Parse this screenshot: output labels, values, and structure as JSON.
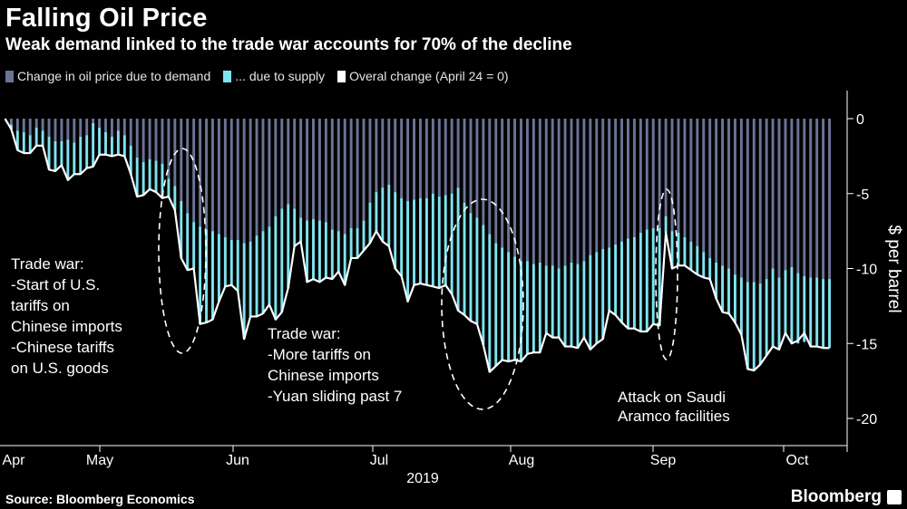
{
  "header": {
    "title": "Falling Oil Price",
    "subtitle": "Weak demand linked to the trade war accounts for 70% of the decline"
  },
  "footer": {
    "source": "Source: Bloomberg Economics",
    "brand": "Bloomberg"
  },
  "colors": {
    "background": "#000000",
    "demand": "#6b7496",
    "supply": "#7fe3ef",
    "overall": "#ffffff",
    "axis": "#ffffff"
  },
  "chart_data": {
    "type": "bar",
    "title": "Falling Oil Price",
    "subtitle": "Weak demand linked to the trade war accounts for 70% of the decline",
    "ylabel": "$ per barrel",
    "xlabel": "2019",
    "ylim": [
      -20,
      0
    ],
    "yticks": [
      0,
      -5,
      -10,
      -15,
      -20
    ],
    "ytick_labels": [
      "0",
      "-5",
      "-10",
      "-15",
      "-20"
    ],
    "x_month_labels": [
      "Apr",
      "May",
      "Jun",
      "Jul",
      "Aug",
      "Sep",
      "Oct"
    ],
    "legend": {
      "position": "top-left",
      "items": [
        {
          "label": "Change in oil price due to demand",
          "color": "#6b7496"
        },
        {
          "label": "... due to supply",
          "color": "#7fe3ef"
        },
        {
          "label": "Overal change (April 24 = 0)",
          "color": "#ffffff"
        }
      ]
    },
    "series": [
      {
        "name": "Change in oil price due to demand",
        "values": [
          0,
          -0.4,
          -0.8,
          -0.9,
          -1.1,
          -0.6,
          -0.8,
          -1.2,
          -1.5,
          -1.5,
          -1.4,
          -1.6,
          -1.2,
          -1.1,
          -0.3,
          -0.6,
          -0.9,
          -1.2,
          -0.8,
          -1.1,
          -1.8,
          -2.6,
          -2.9,
          -2.7,
          -2.8,
          -3.0,
          -4.0,
          -4.5,
          -5.5,
          -6.3,
          -6.9,
          -7.2,
          -7.4,
          -7.5,
          -7.7,
          -7.9,
          -8.1,
          -8.1,
          -8.3,
          -8.2,
          -7.8,
          -7.5,
          -7.2,
          -6.5,
          -6.0,
          -5.7,
          -6.0,
          -6.6,
          -6.8,
          -6.7,
          -6.8,
          -6.9,
          -7.4,
          -7.5,
          -7.7,
          -7.3,
          -7.3,
          -6.8,
          -5.6,
          -4.9,
          -4.6,
          -4.4,
          -4.9,
          -5.3,
          -5.5,
          -5.4,
          -5.3,
          -5.3,
          -5.0,
          -5.2,
          -5.1,
          -5.0,
          -4.6,
          -5.6,
          -6.3,
          -6.6,
          -7.1,
          -7.7,
          -8.3,
          -8.6,
          -8.9,
          -9.2,
          -9.5,
          -9.5,
          -9.7,
          -9.6,
          -9.8,
          -9.8,
          -10.0,
          -9.8,
          -9.6,
          -9.7,
          -9.5,
          -9.1,
          -8.9,
          -8.7,
          -8.6,
          -8.4,
          -8.2,
          -8.0,
          -7.9,
          -7.6,
          -7.4,
          -7.3,
          -7.3,
          -6.5,
          -7.5,
          -7.6,
          -7.9,
          -8.2,
          -8.5,
          -8.9,
          -9.3,
          -9.6,
          -9.8,
          -10.0,
          -10.4,
          -10.6,
          -10.9,
          -10.9,
          -11.0,
          -10.7,
          -10.0,
          -10.6,
          -10.1,
          -9.9,
          -10.3,
          -10.5,
          -10.6,
          -10.6,
          -10.7,
          -10.7
        ],
        "data_points": "trading days from Apr 24 to Oct 10, 2019 (estimated)"
      },
      {
        "name": "... due to supply",
        "values": [
          0,
          -0.3,
          -1.3,
          -1.4,
          -1.2,
          -1.2,
          -1.0,
          -2.2,
          -2.0,
          -1.6,
          -2.7,
          -2.1,
          -2.5,
          -2.2,
          -2.9,
          -1.8,
          -1.5,
          -1.3,
          -1.6,
          -1.4,
          -1.9,
          -2.6,
          -2.2,
          -2.0,
          -2.1,
          -2.3,
          -1.2,
          -1.6,
          -3.8,
          -3.8,
          -3.1,
          -6.5,
          -6.2,
          -5.9,
          -4.5,
          -3.3,
          -3.0,
          -3.4,
          -6.4,
          -5.0,
          -5.4,
          -5.5,
          -5.2,
          -6.9,
          -6.9,
          -5.6,
          -2.5,
          -1.6,
          -4.1,
          -4.0,
          -4.1,
          -3.7,
          -3.3,
          -2.7,
          -3.4,
          -2.0,
          -2.0,
          -2.0,
          -2.7,
          -2.6,
          -3.6,
          -4.1,
          -5.1,
          -5.2,
          -6.7,
          -5.7,
          -5.7,
          -5.8,
          -6.2,
          -6.1,
          -6.0,
          -6.7,
          -8.2,
          -7.5,
          -7.2,
          -7.1,
          -8.0,
          -9.2,
          -8.2,
          -7.5,
          -7.3,
          -6.9,
          -6.7,
          -6.2,
          -5.9,
          -6.0,
          -4.5,
          -4.8,
          -4.6,
          -5.4,
          -5.6,
          -5.6,
          -5.1,
          -6.3,
          -6.1,
          -6.0,
          -4.2,
          -4.7,
          -5.4,
          -6.0,
          -6.1,
          -6.6,
          -6.8,
          -6.4,
          -6.5,
          -1.1,
          -2.5,
          -2.2,
          -1.9,
          -1.9,
          -1.9,
          -1.7,
          -1.4,
          -2.4,
          -3.1,
          -3.0,
          -3.2,
          -3.8,
          -5.8,
          -5.9,
          -5.4,
          -5.1,
          -5.2,
          -4.8,
          -4.3,
          -5.1,
          -4.7,
          -4.4,
          -4.6,
          -4.6,
          -4.6,
          -4.6
        ]
      },
      {
        "name": "Overal change (April 24 = 0)",
        "values": [
          0,
          -0.7,
          -2.1,
          -2.3,
          -2.3,
          -1.8,
          -1.8,
          -3.4,
          -3.5,
          -3.1,
          -4.1,
          -3.7,
          -3.7,
          -3.3,
          -3.2,
          -2.4,
          -2.4,
          -2.5,
          -2.4,
          -2.5,
          -3.7,
          -5.2,
          -5.1,
          -4.7,
          -4.9,
          -5.3,
          -5.2,
          -6.1,
          -9.3,
          -10.1,
          -10.0,
          -13.7,
          -13.6,
          -13.4,
          -12.2,
          -11.2,
          -11.1,
          -11.5,
          -14.7,
          -13.2,
          -13.2,
          -13.0,
          -12.4,
          -13.4,
          -12.9,
          -11.3,
          -8.5,
          -8.2,
          -10.9,
          -10.7,
          -10.9,
          -10.6,
          -10.7,
          -10.2,
          -11.1,
          -9.3,
          -9.3,
          -8.8,
          -8.3,
          -7.5,
          -8.2,
          -8.5,
          -10.0,
          -10.5,
          -12.2,
          -11.1,
          -11.0,
          -11.1,
          -11.2,
          -11.3,
          -11.1,
          -11.7,
          -12.8,
          -13.1,
          -13.5,
          -13.7,
          -15.1,
          -16.9,
          -16.5,
          -16.1,
          -16.2,
          -16.1,
          -16.2,
          -15.7,
          -15.6,
          -15.6,
          -14.3,
          -14.6,
          -14.6,
          -15.2,
          -15.2,
          -15.3,
          -14.6,
          -15.4,
          -15.0,
          -14.7,
          -12.8,
          -13.1,
          -13.6,
          -14.0,
          -14.0,
          -14.2,
          -14.2,
          -13.7,
          -13.8,
          -7.6,
          -10.0,
          -9.8,
          -9.8,
          -10.1,
          -10.4,
          -10.6,
          -10.7,
          -12.0,
          -12.9,
          -13.0,
          -13.6,
          -14.4,
          -16.7,
          -16.8,
          -16.4,
          -15.8,
          -15.2,
          -15.4,
          -14.3,
          -15.0,
          -14.8,
          -14.3,
          -15.2,
          -15.2,
          -15.3,
          -15.3
        ]
      }
    ],
    "annotations": [
      {
        "lines": [
          "Trade war:",
          "-Start of U.S.",
          "tariffs on",
          "Chinese imports",
          "-Chinese tariffs",
          "on U.S. goods"
        ]
      },
      {
        "lines": [
          "Trade war:",
          "-More tariffs on",
          "Chinese imports",
          "-Yuan sliding past 7"
        ]
      },
      {
        "lines": [
          "Attack on Saudi",
          "Aramco facilities"
        ]
      }
    ]
  }
}
